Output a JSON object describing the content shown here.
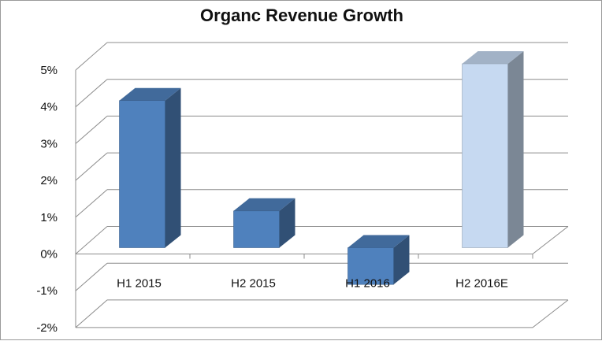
{
  "chart_data": {
    "type": "bar",
    "title": "Organc Revenue Growth",
    "xlabel": "",
    "ylabel": "",
    "categories": [
      "H1 2015",
      "H2 2015",
      "H1 2016",
      "H2 2016E"
    ],
    "values": [
      4,
      1,
      -1,
      5
    ],
    "bar_colors": [
      "#4f81bd",
      "#4f81bd",
      "#4f81bd",
      "#c6d9f1"
    ],
    "ylim": [
      -2,
      5
    ],
    "yticks": [
      "-2%",
      "-1%",
      "0%",
      "1%",
      "2%",
      "3%",
      "4%",
      "5%"
    ],
    "grid": true,
    "legend": "none",
    "style": "3d-column"
  }
}
